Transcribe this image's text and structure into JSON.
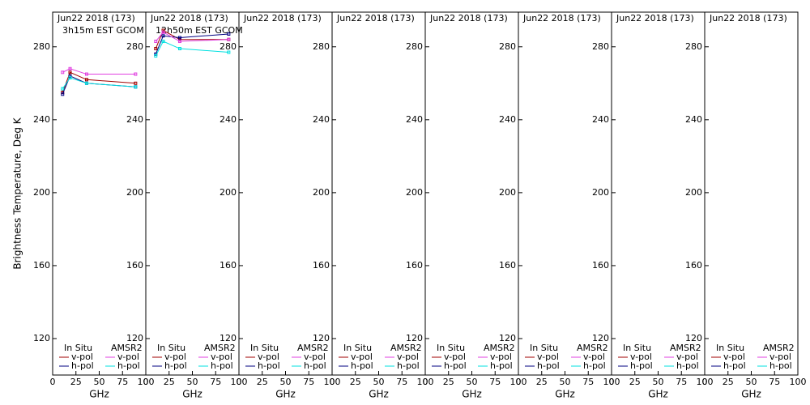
{
  "chart_data": [
    {
      "type": "line",
      "title": "Jun22 2018 (173)",
      "subtitle": "3h15m EST GCOM",
      "y_label": "Brightness Temperature, Deg K",
      "x_label": "GHz",
      "xlim": [
        0,
        100
      ],
      "xticks": [
        0,
        25,
        50,
        75,
        100
      ],
      "ylim": [
        100,
        299
      ],
      "yticks": [
        120,
        160,
        200,
        240,
        280
      ],
      "legend_groups": [
        "In Situ",
        "AMSR2"
      ],
      "x": [
        10.65,
        18.7,
        36.5,
        89
      ],
      "series": [
        {
          "name": "v-pol",
          "group": "In Situ",
          "color": "#a00000",
          "values": [
            255,
            266,
            262,
            260
          ]
        },
        {
          "name": "h-pol",
          "group": "In Situ",
          "color": "#000080",
          "values": [
            254,
            264,
            260,
            258
          ]
        },
        {
          "name": "v-pol",
          "group": "AMSR2",
          "color": "#e040e0",
          "values": [
            266,
            268,
            265,
            265
          ]
        },
        {
          "name": "h-pol",
          "group": "AMSR2",
          "color": "#00e0e0",
          "values": [
            257,
            263,
            260,
            258
          ]
        }
      ]
    },
    {
      "type": "line",
      "title": "Jun22 2018 (173)",
      "subtitle": "12h50m EST GCOM",
      "x_label": "GHz",
      "xlim": [
        0,
        100
      ],
      "xticks": [
        0,
        25,
        50,
        75,
        100
      ],
      "ylim": [
        100,
        299
      ],
      "yticks": [
        120,
        160,
        200,
        240,
        280
      ],
      "legend_groups": [
        "In Situ",
        "AMSR2"
      ],
      "x": [
        10.65,
        18.7,
        36.5,
        89
      ],
      "series": [
        {
          "name": "v-pol",
          "group": "In Situ",
          "color": "#a00000",
          "values": [
            279,
            289,
            284,
            284
          ]
        },
        {
          "name": "h-pol",
          "group": "In Situ",
          "color": "#000080",
          "values": [
            276,
            286,
            285,
            287
          ]
        },
        {
          "name": "v-pol",
          "group": "AMSR2",
          "color": "#e040e0",
          "values": [
            283,
            288,
            283,
            284
          ]
        },
        {
          "name": "h-pol",
          "group": "AMSR2",
          "color": "#00e0e0",
          "values": [
            275,
            283,
            279,
            277
          ]
        }
      ]
    },
    {
      "type": "line",
      "title": "Jun22 2018 (173)",
      "x_label": "GHz",
      "xlim": [
        0,
        100
      ],
      "xticks": [
        0,
        25,
        50,
        75,
        100
      ],
      "ylim": [
        100,
        299
      ],
      "yticks": [
        120,
        160,
        200,
        240,
        280
      ],
      "legend_groups": [
        "In Situ",
        "AMSR2"
      ],
      "series": [
        {
          "name": "v-pol",
          "group": "In Situ",
          "color": "#a00000"
        },
        {
          "name": "h-pol",
          "group": "In Situ",
          "color": "#000080"
        },
        {
          "name": "v-pol",
          "group": "AMSR2",
          "color": "#e040e0"
        },
        {
          "name": "h-pol",
          "group": "AMSR2",
          "color": "#00e0e0"
        }
      ]
    },
    {
      "type": "line",
      "title": "Jun22 2018 (173)",
      "x_label": "GHz",
      "xlim": [
        0,
        100
      ],
      "xticks": [
        0,
        25,
        50,
        75,
        100
      ],
      "ylim": [
        100,
        299
      ],
      "yticks": [
        120,
        160,
        200,
        240,
        280
      ],
      "legend_groups": [
        "In Situ",
        "AMSR2"
      ],
      "series": [
        {
          "name": "v-pol",
          "group": "In Situ",
          "color": "#a00000"
        },
        {
          "name": "h-pol",
          "group": "In Situ",
          "color": "#000080"
        },
        {
          "name": "v-pol",
          "group": "AMSR2",
          "color": "#e040e0"
        },
        {
          "name": "h-pol",
          "group": "AMSR2",
          "color": "#00e0e0"
        }
      ]
    },
    {
      "type": "line",
      "title": "Jun22 2018 (173)",
      "x_label": "GHz",
      "xlim": [
        0,
        100
      ],
      "xticks": [
        0,
        25,
        50,
        75,
        100
      ],
      "ylim": [
        100,
        299
      ],
      "yticks": [
        120,
        160,
        200,
        240,
        280
      ],
      "legend_groups": [
        "In Situ",
        "AMSR2"
      ],
      "series": [
        {
          "name": "v-pol",
          "group": "In Situ",
          "color": "#a00000"
        },
        {
          "name": "h-pol",
          "group": "In Situ",
          "color": "#000080"
        },
        {
          "name": "v-pol",
          "group": "AMSR2",
          "color": "#e040e0"
        },
        {
          "name": "h-pol",
          "group": "AMSR2",
          "color": "#00e0e0"
        }
      ]
    },
    {
      "type": "line",
      "title": "Jun22 2018 (173)",
      "x_label": "GHz",
      "xlim": [
        0,
        100
      ],
      "xticks": [
        0,
        25,
        50,
        75,
        100
      ],
      "ylim": [
        100,
        299
      ],
      "yticks": [
        120,
        160,
        200,
        240,
        280
      ],
      "legend_groups": [
        "In Situ",
        "AMSR2"
      ],
      "series": [
        {
          "name": "v-pol",
          "group": "In Situ",
          "color": "#a00000"
        },
        {
          "name": "h-pol",
          "group": "In Situ",
          "color": "#000080"
        },
        {
          "name": "v-pol",
          "group": "AMSR2",
          "color": "#e040e0"
        },
        {
          "name": "h-pol",
          "group": "AMSR2",
          "color": "#00e0e0"
        }
      ]
    },
    {
      "type": "line",
      "title": "Jun22 2018 (173)",
      "x_label": "GHz",
      "xlim": [
        0,
        100
      ],
      "xticks": [
        0,
        25,
        50,
        75,
        100
      ],
      "ylim": [
        100,
        299
      ],
      "yticks": [
        120,
        160,
        200,
        240,
        280
      ],
      "legend_groups": [
        "In Situ",
        "AMSR2"
      ],
      "series": [
        {
          "name": "v-pol",
          "group": "In Situ",
          "color": "#a00000"
        },
        {
          "name": "h-pol",
          "group": "In Situ",
          "color": "#000080"
        },
        {
          "name": "v-pol",
          "group": "AMSR2",
          "color": "#e040e0"
        },
        {
          "name": "h-pol",
          "group": "AMSR2",
          "color": "#00e0e0"
        }
      ]
    },
    {
      "type": "line",
      "title": "Jun22 2018 (173)",
      "x_label": "GHz",
      "xlim": [
        0,
        100
      ],
      "xticks": [
        0,
        25,
        50,
        75,
        100
      ],
      "ylim": [
        100,
        299
      ],
      "yticks": [
        120,
        160,
        200,
        240,
        280
      ],
      "legend_groups": [
        "In Situ",
        "AMSR2"
      ],
      "series": [
        {
          "name": "v-pol",
          "group": "In Situ",
          "color": "#a00000"
        },
        {
          "name": "h-pol",
          "group": "In Situ",
          "color": "#000080"
        },
        {
          "name": "v-pol",
          "group": "AMSR2",
          "color": "#e040e0"
        },
        {
          "name": "h-pol",
          "group": "AMSR2",
          "color": "#00e0e0"
        }
      ]
    }
  ]
}
